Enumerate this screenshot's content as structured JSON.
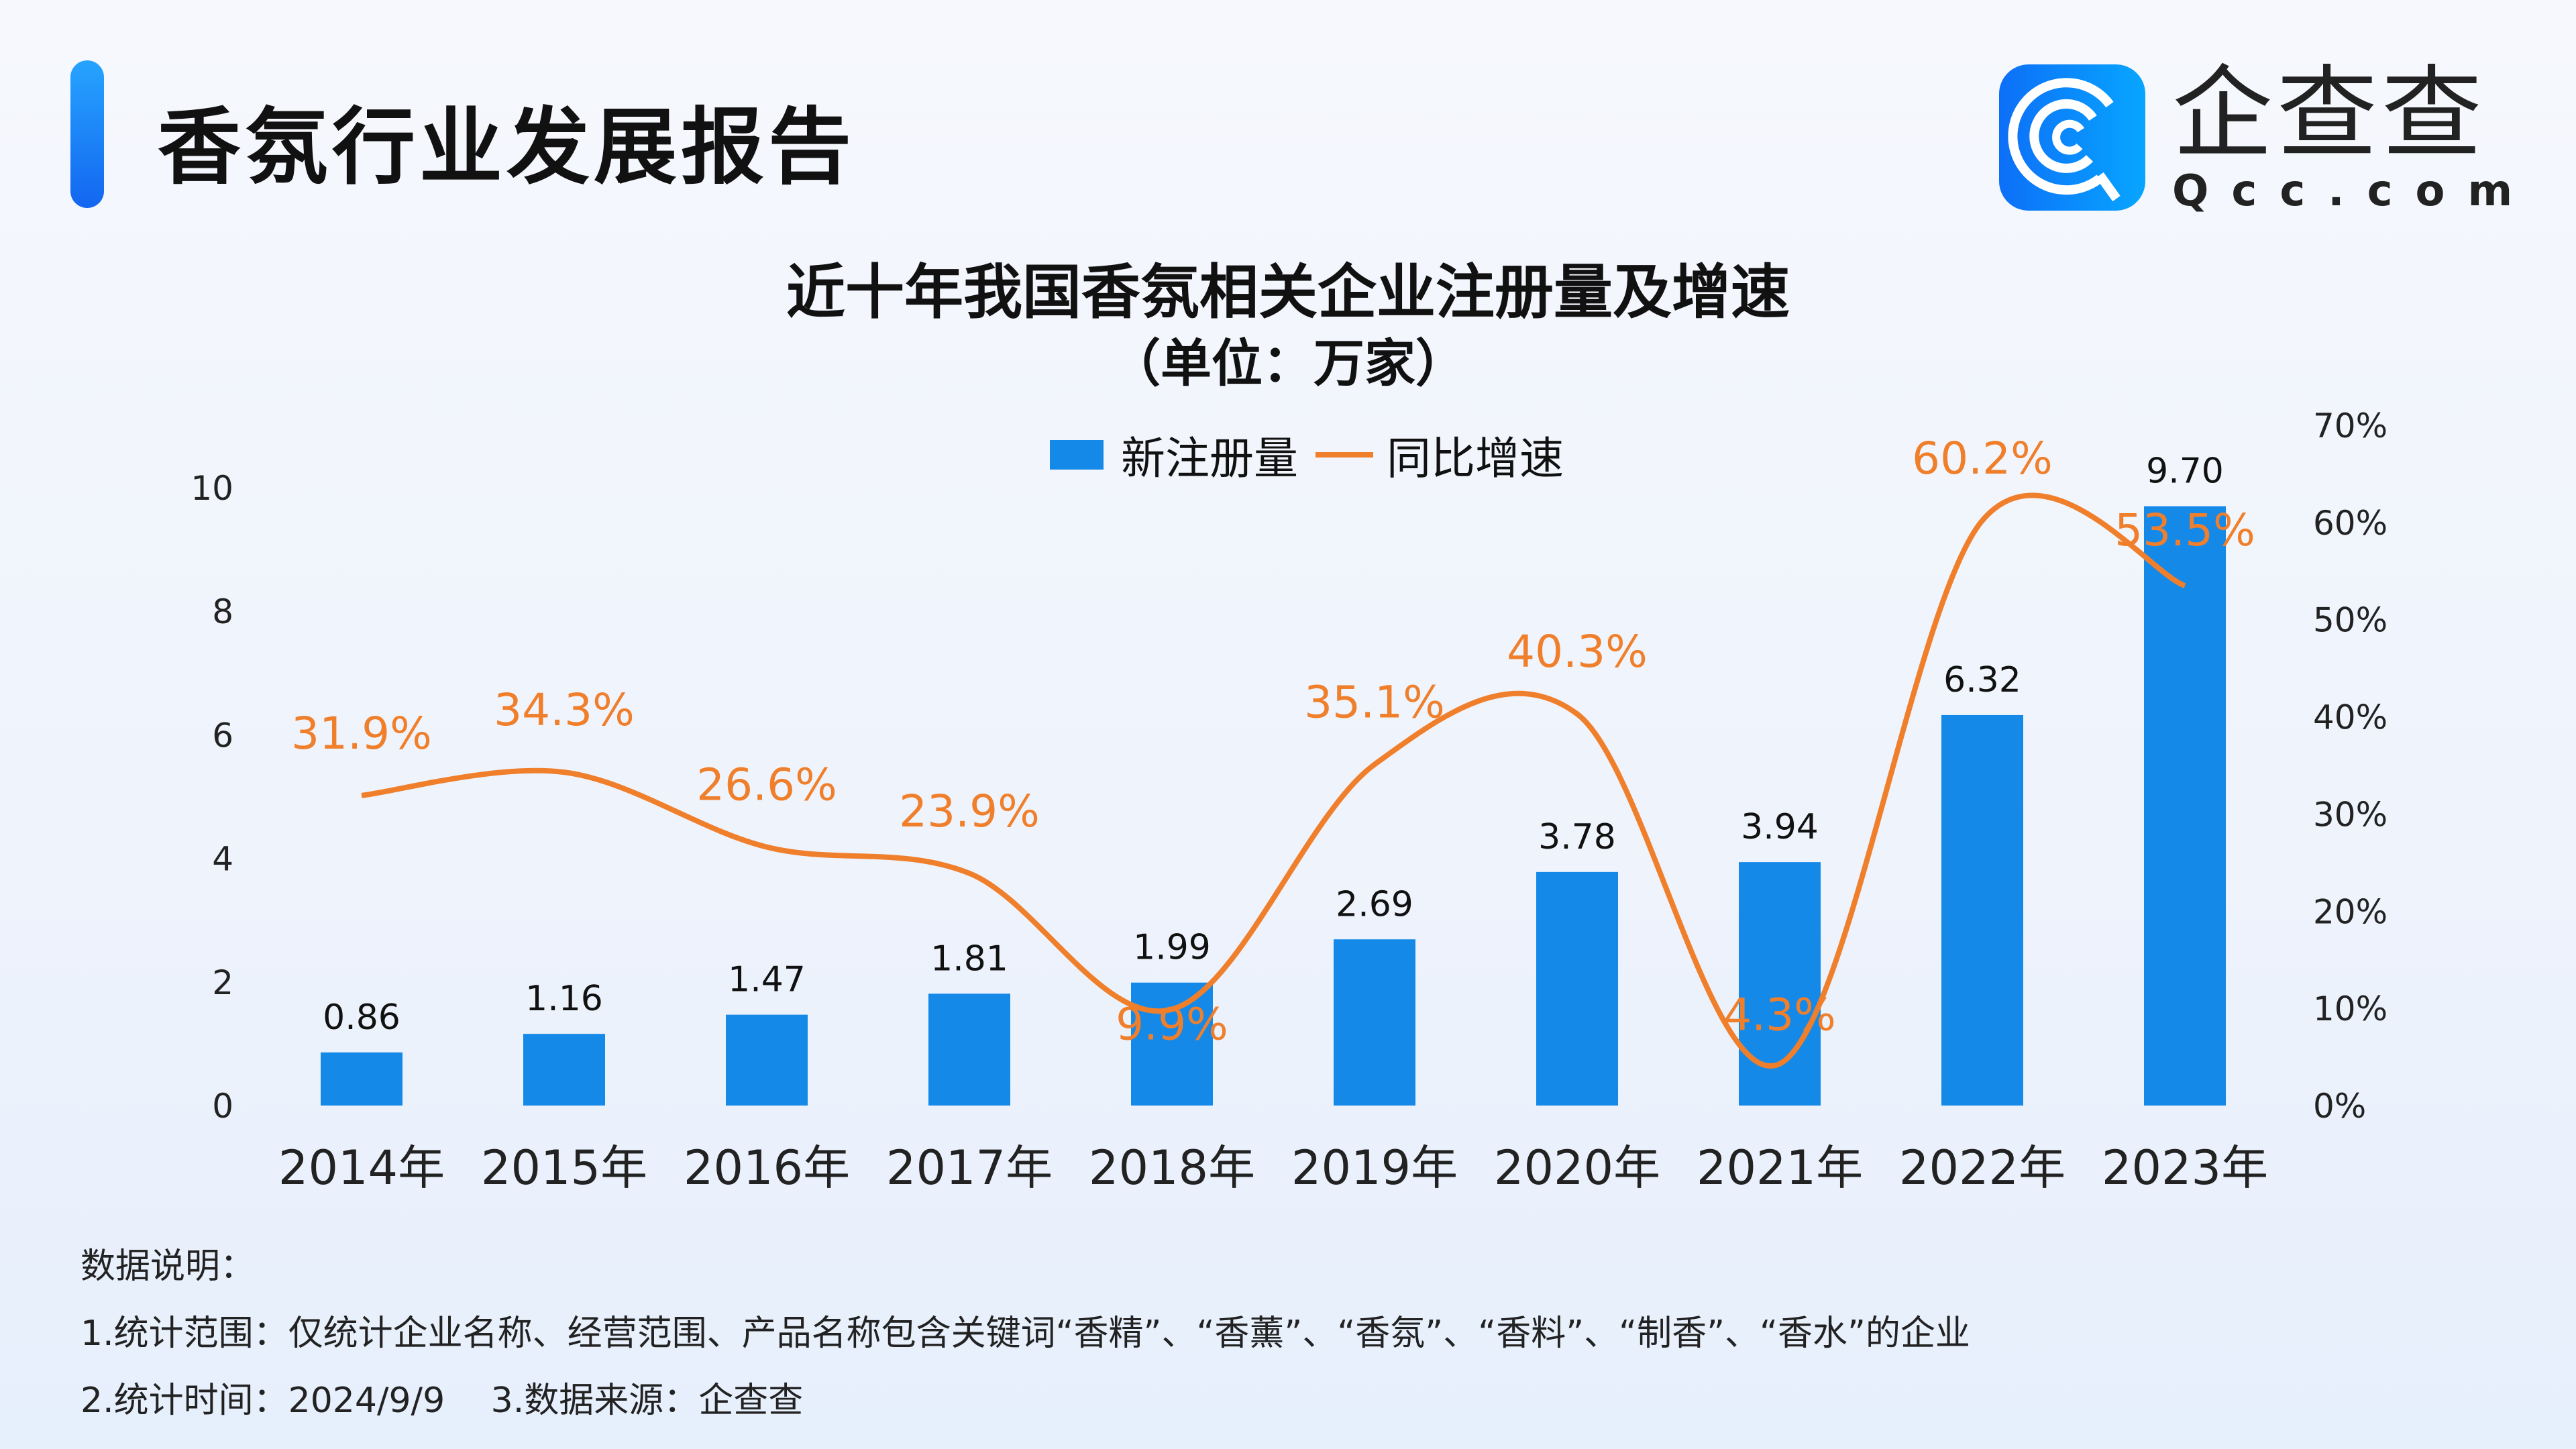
{
  "header": {
    "title": "香氛行业发展报告"
  },
  "logo": {
    "name": "企查查",
    "domain": "Qcc.com"
  },
  "chart_data": {
    "type": "bar+line",
    "title": "近十年我国香氛相关企业注册量及增速",
    "subtitle": "（单位：万家）",
    "categories": [
      "2014年",
      "2015年",
      "2016年",
      "2017年",
      "2018年",
      "2019年",
      "2020年",
      "2021年",
      "2022年",
      "2023年"
    ],
    "series": [
      {
        "name": "新注册量",
        "type": "bar",
        "axis": "left",
        "color": "#1589e8",
        "values": [
          0.86,
          1.16,
          1.47,
          1.81,
          1.99,
          2.69,
          3.78,
          3.94,
          6.32,
          9.7
        ],
        "labels": [
          "0.86",
          "1.16",
          "1.47",
          "1.81",
          "1.99",
          "2.69",
          "3.78",
          "3.94",
          "6.32",
          "9.70"
        ]
      },
      {
        "name": "同比增速",
        "type": "line",
        "axis": "right",
        "color": "#f07f2c",
        "values": [
          31.9,
          34.3,
          26.6,
          23.9,
          9.9,
          35.1,
          40.3,
          4.3,
          60.2,
          53.5
        ],
        "labels": [
          "31.9%",
          "34.3%",
          "26.6%",
          "23.9%",
          "9.9%",
          "35.1%",
          "40.3%",
          "4.3%",
          "60.2%",
          "53.5%"
        ]
      }
    ],
    "y_left": {
      "range": [
        0,
        10
      ],
      "ticks": [
        "0",
        "2",
        "4",
        "6",
        "8",
        "10"
      ]
    },
    "y_right": {
      "range": [
        0,
        70
      ],
      "ticks": [
        "0%",
        "10%",
        "20%",
        "30%",
        "40%",
        "50%",
        "60%",
        "70%"
      ]
    },
    "legend_position": "top-center",
    "grid": false
  },
  "notes": {
    "heading": "数据说明：",
    "line1": "1.统计范围：仅统计企业名称、经营范围、产品名称包含关键词“香精”、“香薰”、“香氛”、“香料”、“制香”、“香水”的企业",
    "line2": "2.统计时间：2024/9/9　 3.数据来源：企查查"
  }
}
